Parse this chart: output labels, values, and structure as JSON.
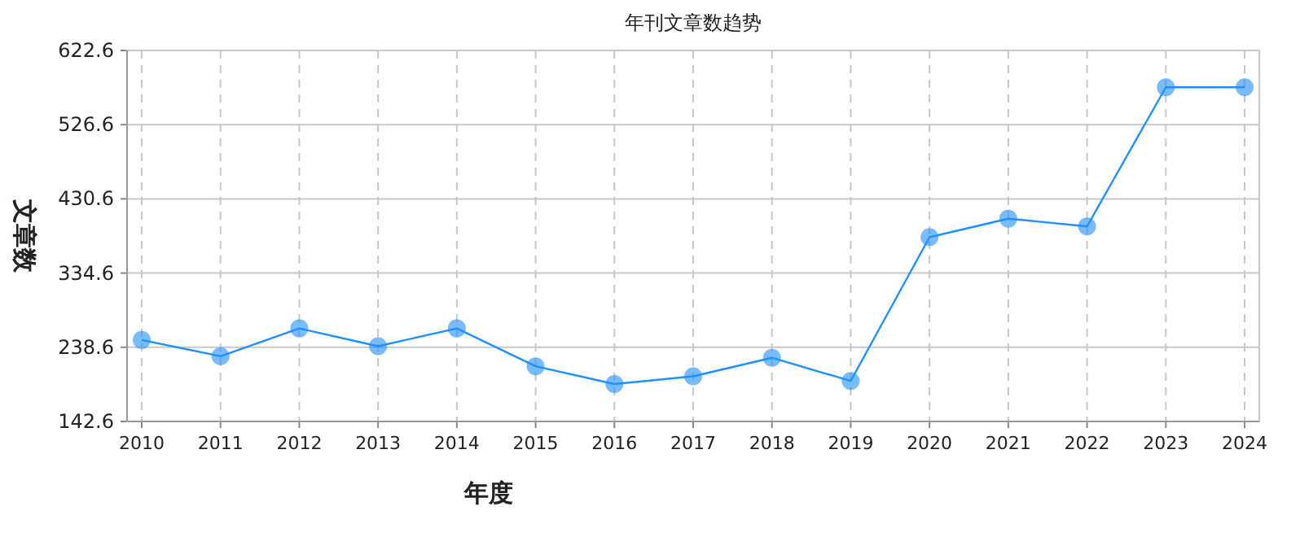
{
  "chart_data": {
    "type": "line",
    "title": "年刊文章数趋势",
    "xlabel": "年度",
    "ylabel": "文章数",
    "categories": [
      "2010",
      "2011",
      "2012",
      "2013",
      "2014",
      "2015",
      "2016",
      "2017",
      "2018",
      "2019",
      "2020",
      "2021",
      "2022",
      "2023",
      "2024"
    ],
    "series": [
      {
        "color": "#1e90ff",
        "values": [
          248,
          227,
          263,
          240,
          263,
          214,
          191,
          201,
          225,
          195,
          381,
          405,
          395,
          575,
          575
        ]
      }
    ],
    "ylim": [
      142.6,
      622.6
    ],
    "yticks": [
      142.6,
      238.6,
      334.6,
      430.6,
      526.6,
      622.6
    ],
    "grid": true,
    "marker": "circle",
    "line_style": "solid"
  }
}
